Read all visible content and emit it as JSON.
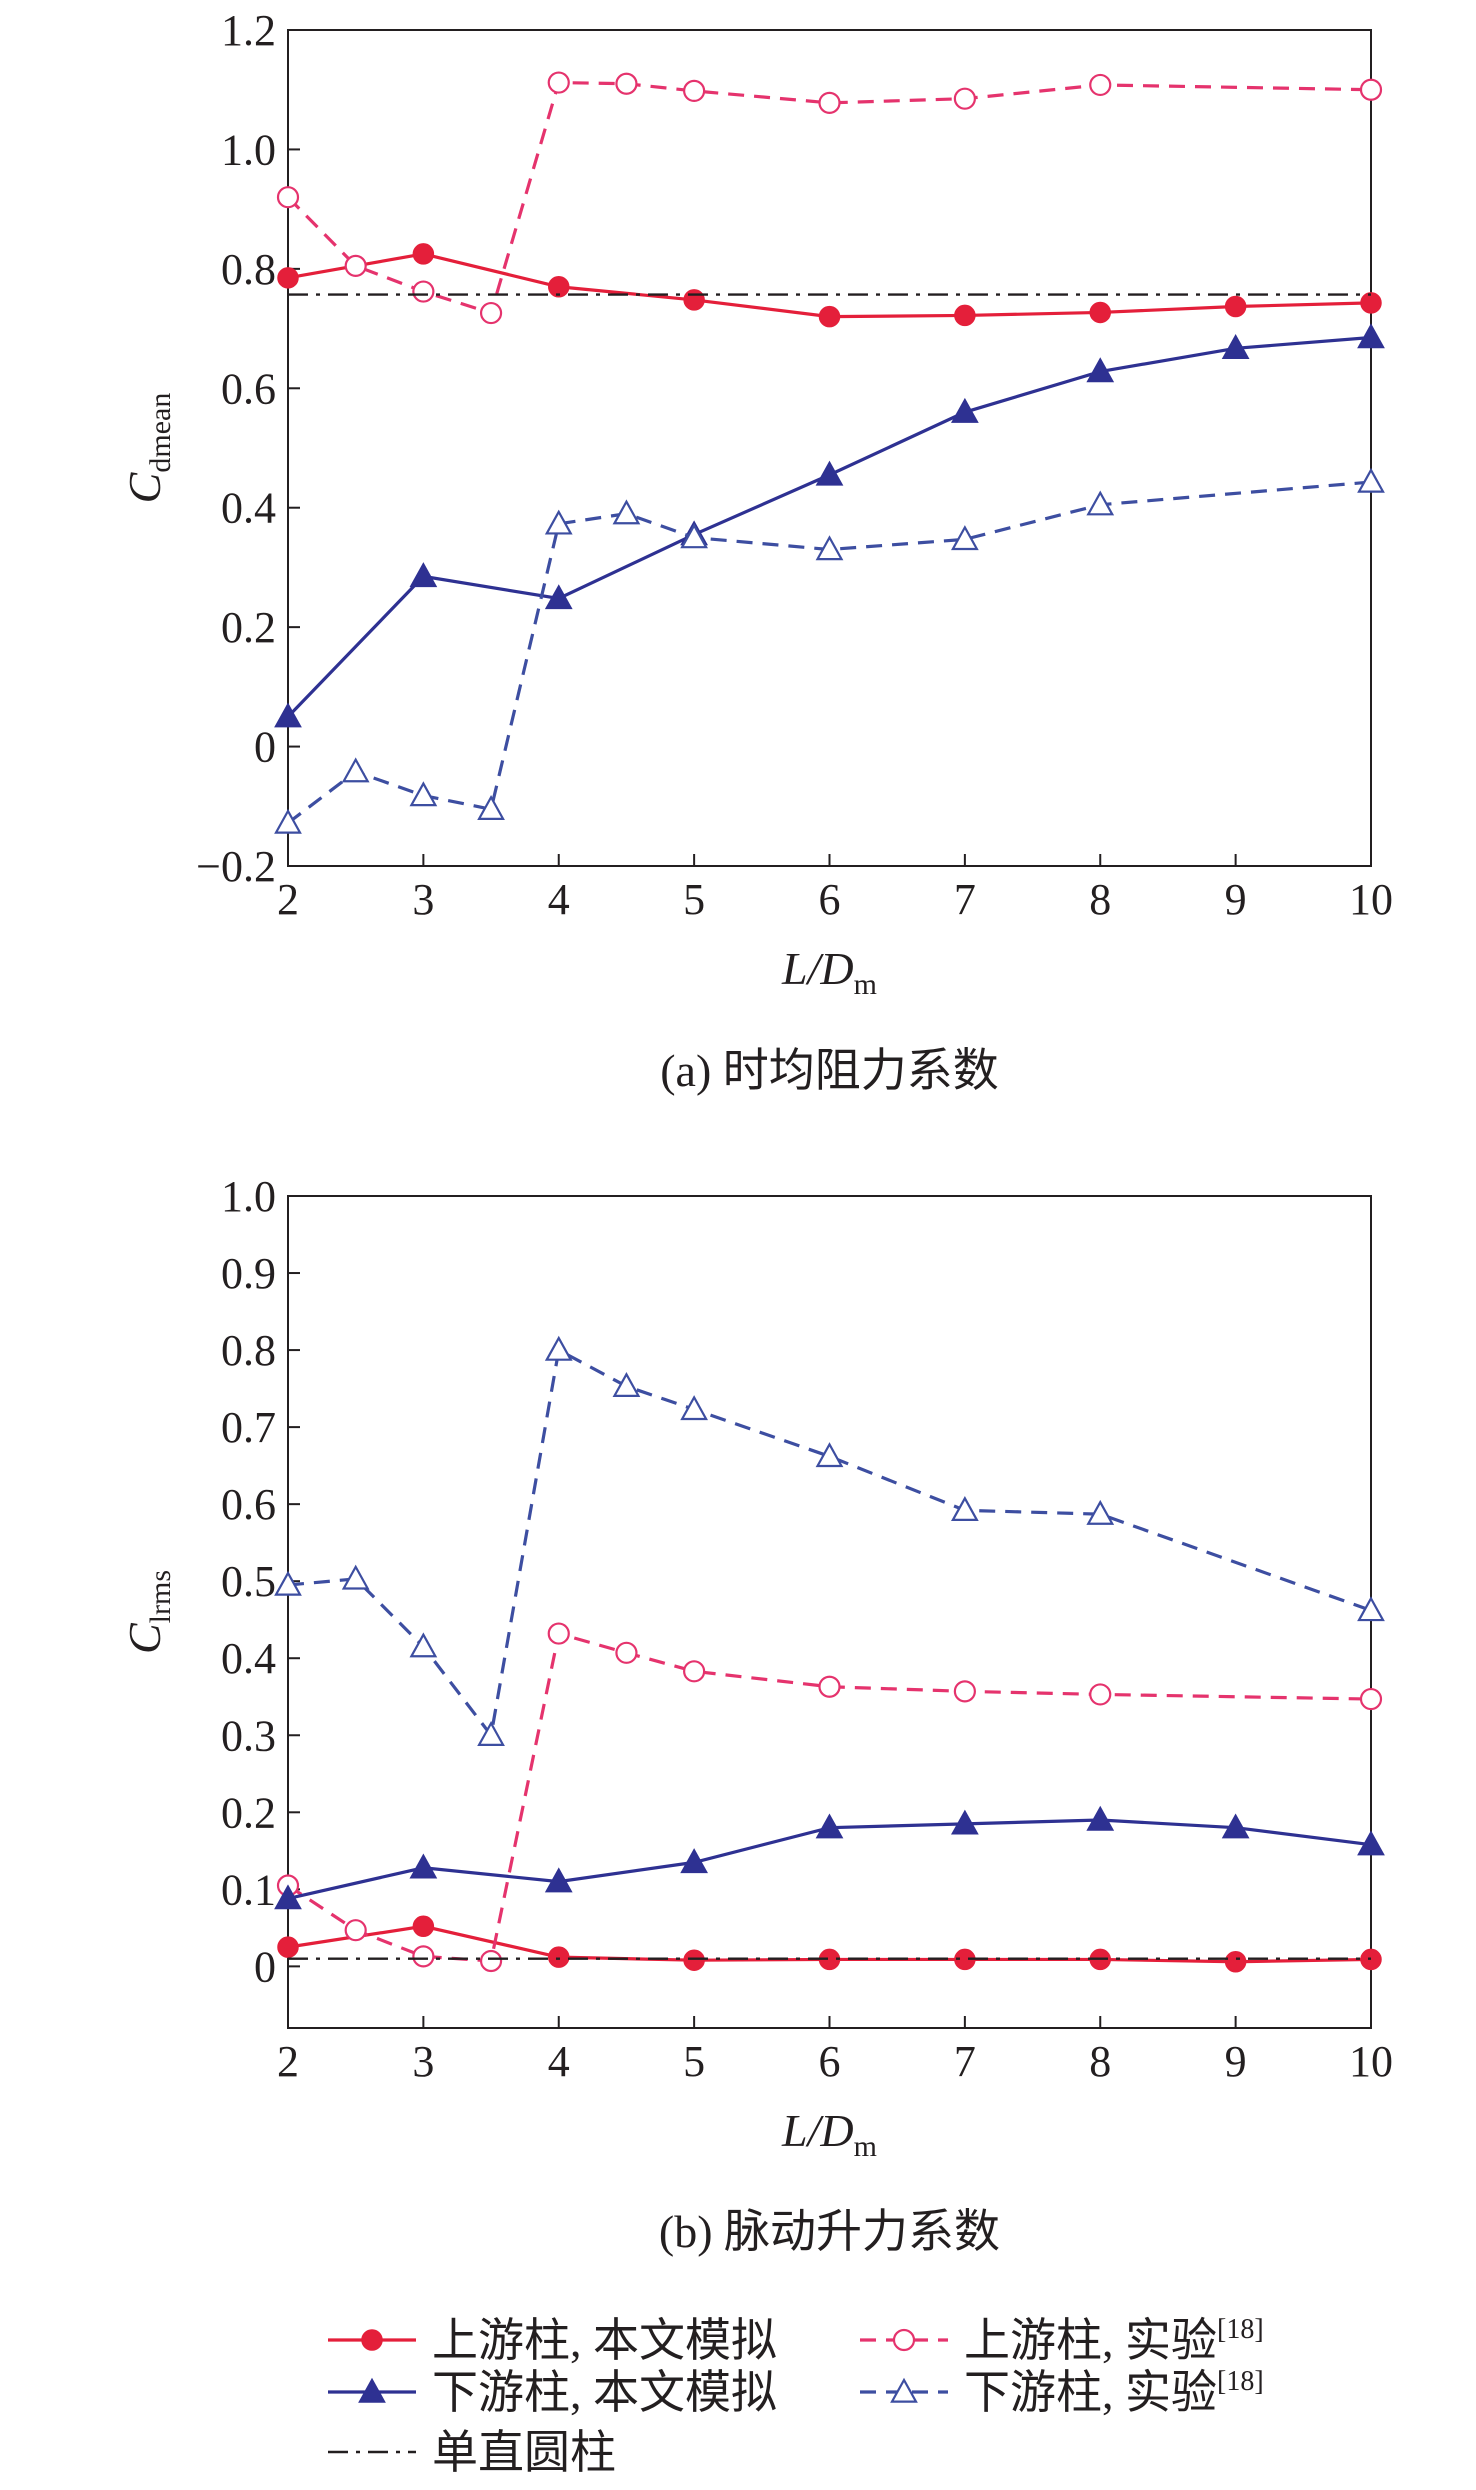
{
  "figure": {
    "legend": {
      "entries": [
        {
          "key": "up_sim",
          "label": "上游柱, 本文模拟",
          "sup": ""
        },
        {
          "key": "up_exp",
          "label": "上游柱, 实验",
          "sup": "[18]"
        },
        {
          "key": "down_sim",
          "label": "下游柱, 本文模拟",
          "sup": ""
        },
        {
          "key": "down_exp",
          "label": "下游柱, 实验",
          "sup": "[18]"
        },
        {
          "key": "single",
          "label": "单直圆柱",
          "sup": ""
        }
      ]
    },
    "colors": {
      "red": "#e41f3a",
      "red_dashed": "#e5336d",
      "blue": "#2e3192",
      "blue_dashed": "#3d4ea1",
      "black": "#231f20"
    }
  },
  "chart_data": [
    {
      "type": "line",
      "caption": "(a) 时均阻力系数",
      "xlabel": {
        "main": "L/D",
        "sub": "m"
      },
      "ylabel": {
        "main": "C",
        "sub": "dmean"
      },
      "xlim": [
        2,
        10
      ],
      "ylim": [
        -0.2,
        1.2
      ],
      "xticks": [
        2,
        3,
        4,
        5,
        6,
        7,
        8,
        9,
        10
      ],
      "yticks": [
        -0.2,
        0,
        0.2,
        0.4,
        0.6,
        0.8,
        1.0,
        1.2
      ],
      "yticklabels": [
        "−0.2",
        "0",
        "0.2",
        "0.4",
        "0.6",
        "0.8",
        "1.0",
        "1.2"
      ],
      "grid": false,
      "series": [
        {
          "key": "up_sim",
          "name": "上游柱, 本文模拟",
          "style": "solid",
          "marker": "filled-circle",
          "color": "#e41f3a",
          "x": [
            2,
            3,
            4,
            5,
            6,
            7,
            8,
            9,
            10
          ],
          "y": [
            0.785,
            0.825,
            0.77,
            0.748,
            0.72,
            0.722,
            0.727,
            0.737,
            0.743
          ]
        },
        {
          "key": "up_exp",
          "name": "上游柱, 实验",
          "style": "dashed",
          "marker": "open-circle",
          "color": "#e5336d",
          "x": [
            2,
            2.5,
            3,
            3.5,
            4,
            4.5,
            5,
            6,
            7,
            8,
            10
          ],
          "y": [
            0.92,
            0.805,
            0.762,
            0.726,
            1.112,
            1.11,
            1.098,
            1.078,
            1.085,
            1.108,
            1.1
          ]
        },
        {
          "key": "down_sim",
          "name": "下游柱, 本文模拟",
          "style": "solid",
          "marker": "filled-triangle",
          "color": "#2e3192",
          "x": [
            2,
            3,
            4,
            5,
            6,
            7,
            8,
            9,
            10
          ],
          "y": [
            0.05,
            0.285,
            0.248,
            0.355,
            0.455,
            0.56,
            0.628,
            0.667,
            0.685
          ]
        },
        {
          "key": "down_exp",
          "name": "下游柱, 实验",
          "style": "dashed",
          "marker": "open-triangle",
          "color": "#3d4ea1",
          "x": [
            2,
            2.5,
            3,
            3.5,
            4,
            4.5,
            5,
            6,
            7,
            8,
            10
          ],
          "y": [
            -0.128,
            -0.042,
            -0.082,
            -0.105,
            0.373,
            0.39,
            0.35,
            0.33,
            0.347,
            0.405,
            0.443
          ]
        },
        {
          "key": "single",
          "name": "单直圆柱",
          "style": "dashdot",
          "marker": "none",
          "color": "#231f20",
          "x": [
            2,
            10
          ],
          "y": [
            0.757,
            0.757
          ]
        }
      ]
    },
    {
      "type": "line",
      "caption": "(b) 脉动升力系数",
      "xlabel": {
        "main": "L/D",
        "sub": "m"
      },
      "ylabel": {
        "main": "C",
        "sub": "lrms"
      },
      "xlim": [
        2,
        10
      ],
      "ylim": [
        -0.08,
        1.0
      ],
      "xticks": [
        2,
        3,
        4,
        5,
        6,
        7,
        8,
        9,
        10
      ],
      "yticks": [
        0,
        0.1,
        0.2,
        0.3,
        0.4,
        0.5,
        0.6,
        0.7,
        0.8,
        0.9,
        1.0
      ],
      "yticklabels": [
        "0",
        "0.1",
        "0.2",
        "0.3",
        "0.4",
        "0.5",
        "0.6",
        "0.7",
        "0.8",
        "0.9",
        "1.0"
      ],
      "grid": false,
      "series": [
        {
          "key": "up_sim",
          "name": "上游柱, 本文模拟",
          "style": "solid",
          "marker": "filled-circle",
          "color": "#e41f3a",
          "x": [
            2,
            3,
            4,
            5,
            6,
            7,
            8,
            9,
            10
          ],
          "y": [
            0.025,
            0.052,
            0.012,
            0.008,
            0.009,
            0.009,
            0.009,
            0.006,
            0.009
          ]
        },
        {
          "key": "up_exp",
          "name": "上游柱, 实验",
          "style": "dashed",
          "marker": "open-circle",
          "color": "#e5336d",
          "x": [
            2,
            2.5,
            3,
            3.5,
            4,
            4.5,
            5,
            6,
            7,
            8,
            10
          ],
          "y": [
            0.105,
            0.047,
            0.013,
            0.007,
            0.432,
            0.407,
            0.383,
            0.363,
            0.357,
            0.353,
            0.347
          ]
        },
        {
          "key": "down_sim",
          "name": "下游柱, 本文模拟",
          "style": "solid",
          "marker": "filled-triangle",
          "color": "#2e3192",
          "x": [
            2,
            3,
            4,
            5,
            6,
            7,
            8,
            9,
            10
          ],
          "y": [
            0.088,
            0.128,
            0.11,
            0.135,
            0.18,
            0.185,
            0.19,
            0.18,
            0.158
          ]
        },
        {
          "key": "down_exp",
          "name": "下游柱, 实验",
          "style": "dashed",
          "marker": "open-triangle",
          "color": "#3d4ea1",
          "x": [
            2,
            2.5,
            3,
            3.5,
            4,
            4.5,
            5,
            6,
            7,
            8,
            10
          ],
          "y": [
            0.495,
            0.503,
            0.415,
            0.3,
            0.8,
            0.753,
            0.723,
            0.662,
            0.592,
            0.587,
            0.462
          ]
        },
        {
          "key": "single",
          "name": "单直圆柱",
          "style": "dashdot",
          "marker": "none",
          "color": "#231f20",
          "x": [
            2,
            10
          ],
          "y": [
            0.01,
            0.01
          ]
        }
      ]
    }
  ]
}
